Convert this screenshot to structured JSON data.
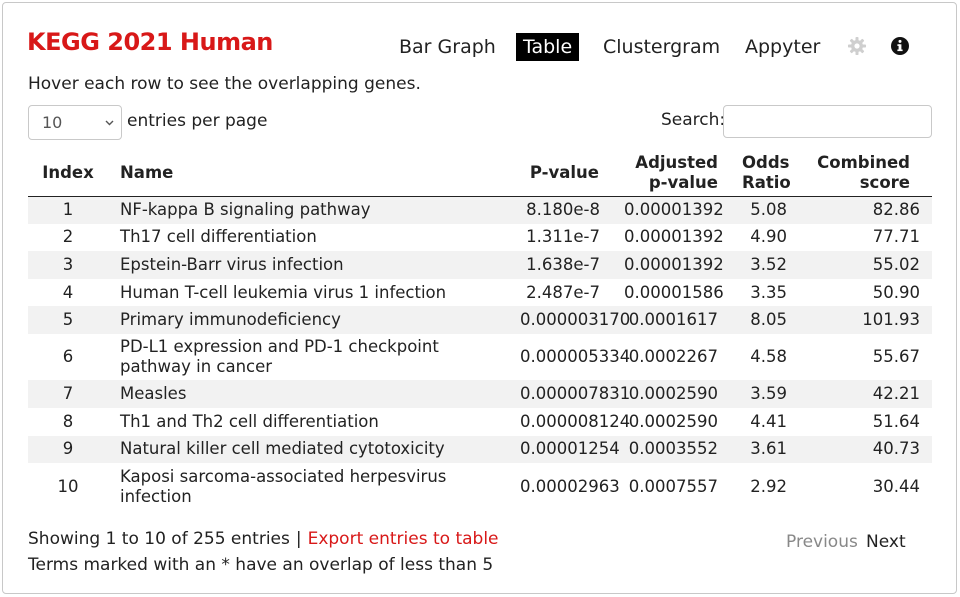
{
  "header": {
    "title": "KEGG 2021 Human"
  },
  "nav": {
    "tabs": [
      {
        "label": "Bar Graph",
        "active": false
      },
      {
        "label": "Table",
        "active": true
      },
      {
        "label": "Clustergram",
        "active": false
      },
      {
        "label": "Appyter",
        "active": false
      }
    ],
    "icons": [
      "gear-icon",
      "info-icon"
    ]
  },
  "hint": "Hover each row to see the overlapping genes.",
  "controls": {
    "entries_value": "10",
    "entries_label": "entries per page",
    "search_label": "Search:",
    "search_value": ""
  },
  "table": {
    "headers": {
      "index": "Index",
      "name": "Name",
      "pvalue": "P-value",
      "adjusted_line1": "Adjusted",
      "adjusted_line2": "p-value",
      "odds_line1": "Odds",
      "odds_line2": "Ratio",
      "combined_line1": "Combined",
      "combined_line2": "score"
    },
    "rows": [
      {
        "index": "1",
        "name": "NF-kappa B signaling pathway",
        "pvalue": "8.180e-8",
        "adjusted": "0.00001392",
        "odds": "5.08",
        "combined": "82.86"
      },
      {
        "index": "2",
        "name": "Th17 cell differentiation",
        "pvalue": "1.311e-7",
        "adjusted": "0.00001392",
        "odds": "4.90",
        "combined": "77.71"
      },
      {
        "index": "3",
        "name": "Epstein-Barr virus infection",
        "pvalue": "1.638e-7",
        "adjusted": "0.00001392",
        "odds": "3.52",
        "combined": "55.02"
      },
      {
        "index": "4",
        "name": "Human T-cell leukemia virus 1 infection",
        "pvalue": "2.487e-7",
        "adjusted": "0.00001586",
        "odds": "3.35",
        "combined": "50.90"
      },
      {
        "index": "5",
        "name": "Primary immunodeficiency",
        "pvalue": "0.000003170",
        "adjusted": "0.0001617",
        "odds": "8.05",
        "combined": "101.93"
      },
      {
        "index": "6",
        "name": "PD-L1 expression and PD-1 checkpoint pathway in cancer",
        "pvalue": "0.000005334",
        "adjusted": "0.0002267",
        "odds": "4.58",
        "combined": "55.67"
      },
      {
        "index": "7",
        "name": "Measles",
        "pvalue": "0.000007831",
        "adjusted": "0.0002590",
        "odds": "3.59",
        "combined": "42.21"
      },
      {
        "index": "8",
        "name": "Th1 and Th2 cell differentiation",
        "pvalue": "0.000008124",
        "adjusted": "0.0002590",
        "odds": "4.41",
        "combined": "51.64"
      },
      {
        "index": "9",
        "name": "Natural killer cell mediated cytotoxicity",
        "pvalue": "0.00001254",
        "adjusted": "0.0003552",
        "odds": "3.61",
        "combined": "40.73"
      },
      {
        "index": "10",
        "name": "Kaposi sarcoma-associated herpesvirus infection",
        "pvalue": "0.00002963",
        "adjusted": "0.0007557",
        "odds": "2.92",
        "combined": "30.44"
      }
    ]
  },
  "footer": {
    "showing": "Showing 1 to 10 of 255 entries",
    "separator": "|",
    "export_label": "Export entries to table",
    "note": "Terms marked with an * have an overlap of less than 5",
    "prev_label": "Previous",
    "next_label": "Next"
  },
  "colors": {
    "accent": "#d81818",
    "active_tab_bg": "#000000",
    "stripe": "#f2f2f2"
  }
}
